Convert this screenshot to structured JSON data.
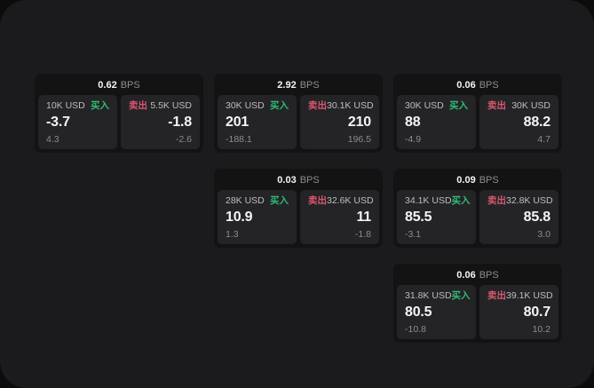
{
  "theme": {
    "outer_bg": "#0c0c0d",
    "surface_bg": "#1b1b1d",
    "card_bg": "#131314",
    "tile_bg": "#242427",
    "text_primary": "#f5f5f5",
    "text_label": "#bdbdbd",
    "text_muted": "#8d8d8d",
    "buy_green": "#2ebd72",
    "sell_red": "#d9566f"
  },
  "cards": [
    {
      "bps": "0.62",
      "bps_unit": "BPS",
      "buy": {
        "amount": "10K USD",
        "side_label": "买入",
        "price": "-3.7",
        "change": "4.3"
      },
      "sell": {
        "amount": "5.5K USD",
        "side_label": "卖出",
        "price": "-1.8",
        "change": "-2.6"
      }
    },
    {
      "bps": "2.92",
      "bps_unit": "BPS",
      "buy": {
        "amount": "30K USD",
        "side_label": "买入",
        "price": "201",
        "change": "-188.1"
      },
      "sell": {
        "amount": "30.1K USD",
        "side_label": "卖出",
        "price": "210",
        "change": "196.5"
      }
    },
    {
      "bps": "0.06",
      "bps_unit": "BPS",
      "buy": {
        "amount": "30K USD",
        "side_label": "买入",
        "price": "88",
        "change": "-4.9"
      },
      "sell": {
        "amount": "30K USD",
        "side_label": "卖出",
        "price": "88.2",
        "change": "4.7"
      }
    },
    {
      "bps": "0.03",
      "bps_unit": "BPS",
      "buy": {
        "amount": "28K USD",
        "side_label": "买入",
        "price": "10.9",
        "change": "1.3"
      },
      "sell": {
        "amount": "32.6K USD",
        "side_label": "卖出",
        "price": "11",
        "change": "-1.8"
      }
    },
    {
      "bps": "0.09",
      "bps_unit": "BPS",
      "buy": {
        "amount": "34.1K USD",
        "side_label": "买入",
        "price": "85.5",
        "change": "-3.1"
      },
      "sell": {
        "amount": "32.8K USD",
        "side_label": "卖出",
        "price": "85.8",
        "change": "3.0"
      }
    },
    {
      "bps": "0.06",
      "bps_unit": "BPS",
      "buy": {
        "amount": "31.8K USD",
        "side_label": "买入",
        "price": "80.5",
        "change": "-10.8"
      },
      "sell": {
        "amount": "39.1K USD",
        "side_label": "卖出",
        "price": "80.7",
        "change": "10.2"
      }
    }
  ]
}
